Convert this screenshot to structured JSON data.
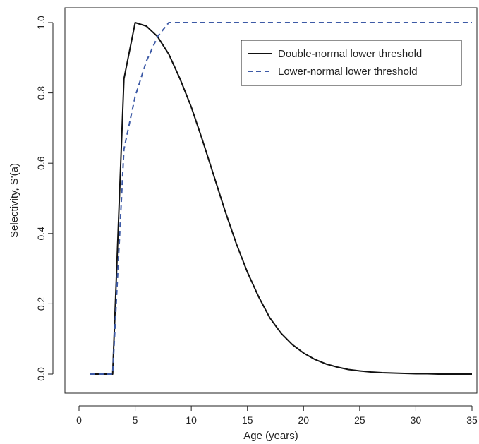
{
  "chart_data": {
    "type": "line",
    "xlabel": "Age (years)",
    "ylabel": "Selectivity, S'(a)",
    "xlim": [
      0,
      35
    ],
    "ylim": [
      0,
      1.0
    ],
    "xticks": [
      "0",
      "5",
      "10",
      "15",
      "20",
      "25",
      "30",
      "35"
    ],
    "yticks": [
      "0.0",
      "0.2",
      "0.4",
      "0.6",
      "0.8",
      "1.0"
    ],
    "grid": false,
    "legend_position": "top-right",
    "series": [
      {
        "name": "Double-normal lower threshold",
        "color": "#111111",
        "dash": "solid",
        "x": [
          1,
          2,
          3,
          4,
          5,
          6,
          7,
          8,
          9,
          10,
          11,
          12,
          13,
          14,
          15,
          16,
          17,
          18,
          19,
          20,
          21,
          22,
          23,
          24,
          25,
          26,
          27,
          28,
          29,
          30,
          31,
          32,
          33,
          34,
          35
        ],
        "y": [
          0,
          0,
          0,
          0.84,
          1.0,
          0.99,
          0.96,
          0.91,
          0.84,
          0.76,
          0.665,
          0.565,
          0.465,
          0.372,
          0.29,
          0.22,
          0.16,
          0.116,
          0.084,
          0.06,
          0.042,
          0.029,
          0.02,
          0.013,
          0.009,
          0.006,
          0.004,
          0.003,
          0.002,
          0.001,
          0.001,
          0,
          0,
          0,
          0
        ]
      },
      {
        "name": "Lower-normal lower threshold",
        "color": "#3d5aa6",
        "dash": "dashed",
        "x": [
          1,
          2,
          3,
          4,
          5,
          6,
          7,
          8,
          9,
          10,
          15,
          20,
          25,
          30,
          35
        ],
        "y": [
          0,
          0,
          0,
          0.64,
          0.79,
          0.89,
          0.96,
          1.0,
          1.0,
          1.0,
          1.0,
          1.0,
          1.0,
          1.0,
          1.0
        ]
      }
    ]
  }
}
